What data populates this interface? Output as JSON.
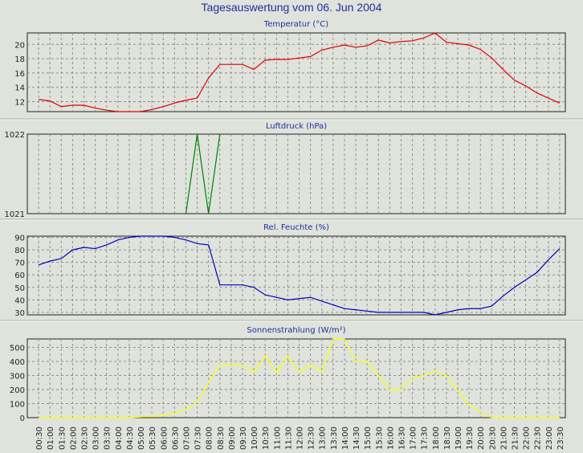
{
  "title": "Tagesauswertung vom 06. Jun 2004",
  "x_labels": [
    "00:30",
    "01:00",
    "01:30",
    "02:00",
    "02:30",
    "03:00",
    "03:30",
    "04:00",
    "04:30",
    "05:00",
    "05:30",
    "06:00",
    "06:30",
    "07:00",
    "07:30",
    "08:00",
    "08:30",
    "09:00",
    "09:30",
    "10:00",
    "10:30",
    "11:00",
    "11:30",
    "12:00",
    "12:30",
    "13:00",
    "13:30",
    "14:00",
    "14:30",
    "15:00",
    "15:30",
    "16:00",
    "16:30",
    "17:00",
    "17:30",
    "18:00",
    "18:30",
    "19:00",
    "19:30",
    "20:00",
    "20:30",
    "21:00",
    "21:30",
    "22:00",
    "22:30",
    "23:00",
    "23:30"
  ],
  "chart_data": [
    {
      "type": "line",
      "title": "Temperatur (°C)",
      "color": "#e00000",
      "ylim": [
        10.6,
        21.6
      ],
      "y_ticks": [
        12,
        14,
        16,
        18,
        20
      ],
      "x": [
        "00:30",
        "01:00",
        "01:30",
        "02:00",
        "02:30",
        "03:00",
        "03:30",
        "04:00",
        "04:30",
        "05:00",
        "05:30",
        "06:00",
        "06:30",
        "07:00",
        "07:30",
        "08:00",
        "08:30",
        "09:00",
        "09:30",
        "10:00",
        "10:30",
        "11:00",
        "11:30",
        "12:00",
        "12:30",
        "13:00",
        "13:30",
        "14:00",
        "14:30",
        "15:00",
        "15:30",
        "16:00",
        "16:30",
        "17:00",
        "17:30",
        "18:00",
        "18:30",
        "19:00",
        "19:30",
        "20:00",
        "20:30",
        "21:00",
        "21:30",
        "22:00",
        "22:30",
        "23:00",
        "23:30"
      ],
      "values": [
        12.3,
        12.1,
        11.3,
        11.5,
        11.5,
        11.1,
        10.8,
        10.6,
        10.6,
        10.6,
        10.9,
        11.3,
        11.8,
        12.2,
        12.5,
        15.3,
        17.2,
        17.2,
        17.2,
        16.5,
        17.8,
        17.9,
        17.9,
        18.1,
        18.3,
        19.2,
        19.6,
        19.9,
        19.6,
        19.8,
        20.6,
        20.2,
        20.4,
        20.5,
        20.9,
        21.6,
        20.3,
        20.1,
        19.9,
        19.3,
        18.1,
        16.5,
        15.0,
        14.2,
        13.2,
        12.5,
        11.8
      ]
    },
    {
      "type": "line",
      "title": "Luftdruck (hPa)",
      "color": "#008000",
      "ylim": [
        1021,
        1022
      ],
      "y_ticks": [
        1021,
        1022
      ],
      "x": [
        "07:00",
        "07:30",
        "08:00",
        "08:30"
      ],
      "values": [
        1021,
        1022,
        1021,
        1022
      ]
    },
    {
      "type": "line",
      "title": "Rel. Feuchte (%)",
      "color": "#0000c0",
      "ylim": [
        28,
        91
      ],
      "y_ticks": [
        30,
        40,
        50,
        60,
        70,
        80,
        90
      ],
      "x": [
        "00:30",
        "01:00",
        "01:30",
        "02:00",
        "02:30",
        "03:00",
        "03:30",
        "04:00",
        "04:30",
        "05:00",
        "05:30",
        "06:00",
        "06:30",
        "07:00",
        "07:30",
        "08:00",
        "08:30",
        "09:00",
        "09:30",
        "10:00",
        "10:30",
        "11:00",
        "11:30",
        "12:00",
        "12:30",
        "13:00",
        "13:30",
        "14:00",
        "14:30",
        "15:00",
        "15:30",
        "16:00",
        "16:30",
        "17:00",
        "17:30",
        "18:00",
        "18:30",
        "19:00",
        "19:30",
        "20:00",
        "20:30",
        "21:00",
        "21:30",
        "22:00",
        "22:30",
        "23:00",
        "23:30"
      ],
      "values": [
        68,
        71,
        73,
        80,
        82,
        81,
        84,
        88,
        90,
        91,
        91,
        91,
        90,
        88,
        85,
        84,
        52,
        52,
        52,
        50,
        44,
        42,
        40,
        41,
        42,
        39,
        36,
        33,
        32,
        31,
        30,
        30,
        30,
        30,
        30,
        28,
        30,
        32,
        33,
        33,
        35,
        43,
        50,
        56,
        62,
        72,
        81
      ]
    },
    {
      "type": "line",
      "title": "Sonnenstrahlung (W/m²)",
      "color": "#ffff00",
      "ylim": [
        0,
        560
      ],
      "y_ticks": [
        0,
        100,
        200,
        300,
        400,
        500
      ],
      "x": [
        "00:30",
        "01:00",
        "01:30",
        "02:00",
        "02:30",
        "03:00",
        "03:30",
        "04:00",
        "04:30",
        "05:00",
        "05:30",
        "06:00",
        "06:30",
        "07:00",
        "07:30",
        "08:00",
        "08:30",
        "09:00",
        "09:30",
        "10:00",
        "10:30",
        "11:00",
        "11:30",
        "12:00",
        "12:30",
        "13:00",
        "13:30",
        "14:00",
        "14:30",
        "15:00",
        "15:30",
        "16:00",
        "16:30",
        "17:00",
        "17:30",
        "18:00",
        "18:30",
        "19:00",
        "19:30",
        "20:00",
        "20:30",
        "21:00",
        "21:30",
        "22:00",
        "22:30",
        "23:00",
        "23:30"
      ],
      "values": [
        0,
        0,
        0,
        0,
        0,
        0,
        0,
        0,
        0,
        5,
        10,
        15,
        30,
        60,
        110,
        250,
        380,
        380,
        370,
        320,
        440,
        320,
        440,
        320,
        380,
        320,
        560,
        560,
        400,
        400,
        300,
        200,
        200,
        280,
        300,
        330,
        300,
        190,
        90,
        40,
        0,
        0,
        0,
        0,
        0,
        0,
        0
      ]
    }
  ]
}
